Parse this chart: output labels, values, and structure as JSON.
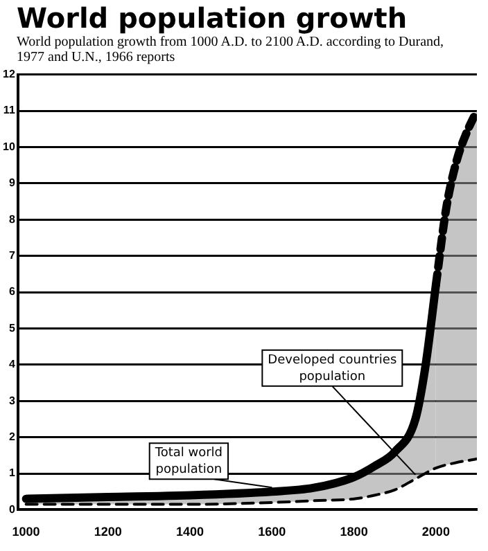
{
  "chart_data": {
    "type": "line",
    "title": "World population growth",
    "subtitle": "World population growth from 1000 A.D. to 2100 A.D. according to Durand, 1977 and U.N., 1966 reports",
    "xlim": [
      980,
      2100
    ],
    "xticks": [
      1000,
      1200,
      1400,
      1600,
      1800,
      2000
    ],
    "ylim": [
      0,
      12
    ],
    "yticks": [
      0,
      1,
      2,
      3,
      4,
      5,
      6,
      7,
      8,
      9,
      10,
      11,
      12
    ],
    "grid": "y",
    "legend": false,
    "marker": "none",
    "series": [
      {
        "name": "Developed countries population",
        "line_style": "dashed",
        "color": "#000000",
        "x": [
          1000,
          1200,
          1400,
          1600,
          1700,
          1800,
          1850,
          1900,
          1950,
          2000,
          2050,
          2100
        ],
        "values": [
          0.15,
          0.15,
          0.15,
          0.2,
          0.25,
          0.3,
          0.4,
          0.55,
          0.85,
          1.15,
          1.3,
          1.4
        ]
      },
      {
        "name": "Total world population",
        "type": "area",
        "line_style": "solid",
        "color": "#000000",
        "x": [
          1000,
          1200,
          1400,
          1600,
          1700,
          1800,
          1850,
          1900,
          1950,
          1975,
          2000
        ],
        "values": [
          0.3,
          0.35,
          0.4,
          0.5,
          0.6,
          0.9,
          1.2,
          1.6,
          2.5,
          4,
          6.2
        ]
      },
      {
        "type": "area",
        "line_style": "dashed",
        "color": "#000000",
        "x": [
          2000,
          2025,
          2050,
          2075,
          2100
        ],
        "values": [
          6.2,
          8.3,
          9.6,
          10.4,
          11
        ]
      }
    ]
  }
}
